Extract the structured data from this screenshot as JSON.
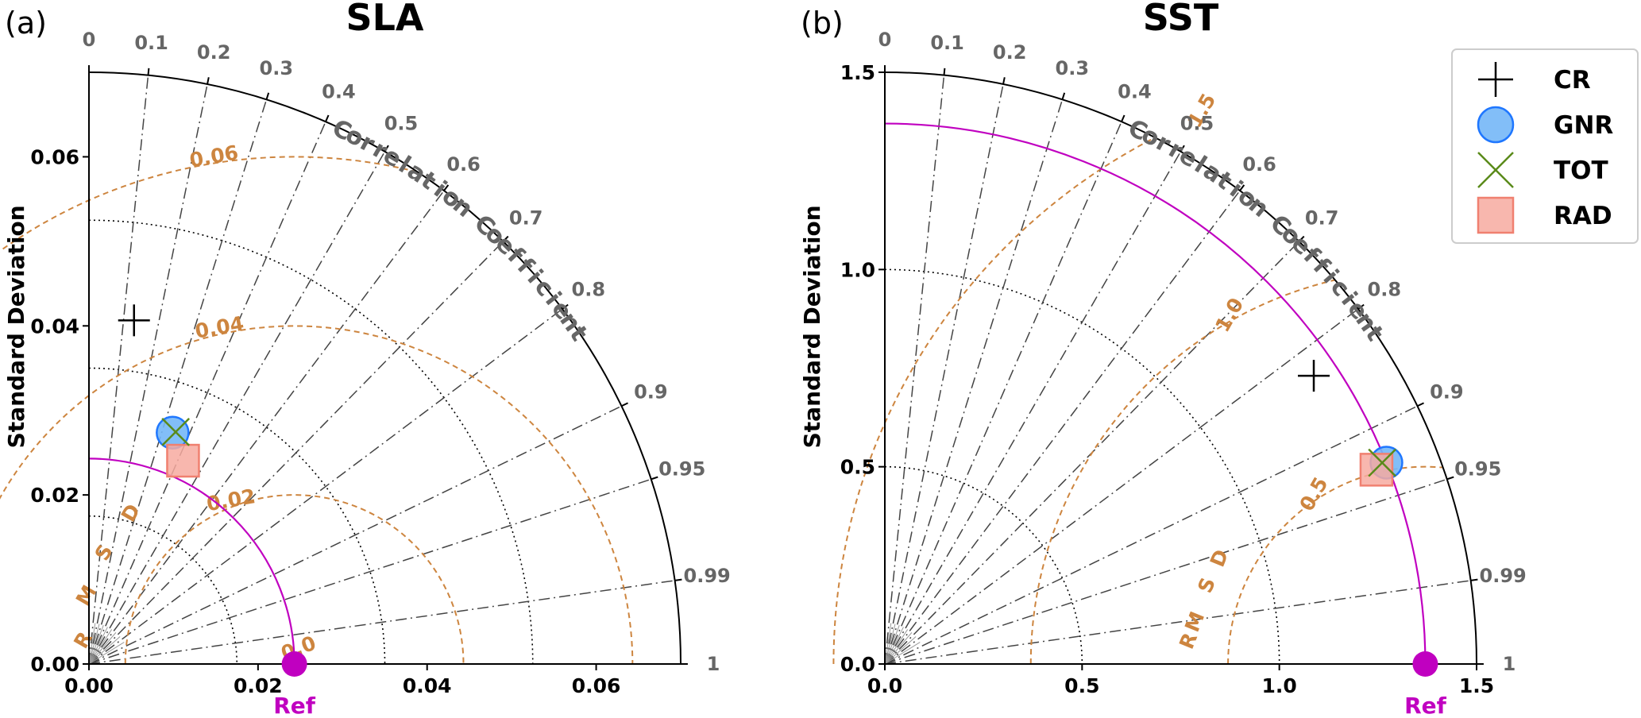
{
  "chart_data": [
    {
      "type": "taylor",
      "panel_label": "(a)",
      "title": "SLA",
      "ylabel": "Standard Deviation",
      "angle_title": "Correlation Coefficient",
      "rms_title": "RMSD",
      "ref_label": "Ref",
      "std_max": 0.07,
      "ref_std": 0.0243,
      "std_ticks": [
        "0.00",
        "0.02",
        "0.04",
        "0.06"
      ],
      "std_tick_values": [
        0,
        0.02,
        0.04,
        0.06
      ],
      "std_circles": [
        0.0175,
        0.035,
        0.0525
      ],
      "corr_ticks": [
        "0",
        "0.1",
        "0.2",
        "0.3",
        "0.4",
        "0.5",
        "0.6",
        "0.7",
        "0.8",
        "0.9",
        "0.95",
        "0.99",
        "1"
      ],
      "corr_tick_values": [
        0,
        0.1,
        0.2,
        0.3,
        0.4,
        0.5,
        0.6,
        0.7,
        0.8,
        0.9,
        0.95,
        0.99,
        1
      ],
      "rms_contours": [
        0.02,
        0.04,
        0.06
      ],
      "rms_labels": [
        "0.02",
        "0.04",
        "0.06"
      ],
      "rms_zero_label": "0.0",
      "points": [
        {
          "model": "CR",
          "std": 0.041,
          "corr": 0.13
        },
        {
          "model": "GNR",
          "std": 0.0291,
          "corr": 0.34
        },
        {
          "model": "TOT",
          "std": 0.0293,
          "corr": 0.35
        },
        {
          "model": "RAD",
          "std": 0.0265,
          "corr": 0.42
        }
      ]
    },
    {
      "type": "taylor",
      "panel_label": "(b)",
      "title": "SST",
      "ylabel": "Standard Deviation",
      "angle_title": "Correlation Coefficient",
      "rms_title": "RMSD",
      "ref_label": "Ref",
      "std_max": 1.5,
      "ref_std": 1.37,
      "std_ticks": [
        "0.0",
        "0.5",
        "1.0",
        "1.5"
      ],
      "std_tick_values": [
        0,
        0.5,
        1.0,
        1.5
      ],
      "std_circles": [
        0.5,
        1.0
      ],
      "corr_ticks": [
        "0",
        "0.1",
        "0.2",
        "0.3",
        "0.4",
        "0.5",
        "0.6",
        "0.7",
        "0.8",
        "0.9",
        "0.95",
        "0.99",
        "1"
      ],
      "corr_tick_values": [
        0,
        0.1,
        0.2,
        0.3,
        0.4,
        0.5,
        0.6,
        0.7,
        0.8,
        0.9,
        0.95,
        0.99,
        1
      ],
      "rms_contours": [
        0.5,
        1.0,
        1.5
      ],
      "rms_labels": [
        "0.5",
        "1.0",
        "1.5"
      ],
      "rms_zero_label": "",
      "points": [
        {
          "model": "CR",
          "std": 1.31,
          "corr": 0.83
        },
        {
          "model": "GNR",
          "std": 1.37,
          "corr": 0.928
        },
        {
          "model": "TOT",
          "std": 1.36,
          "corr": 0.927
        },
        {
          "model": "RAD",
          "std": 1.34,
          "corr": 0.93
        }
      ]
    }
  ],
  "legend": {
    "items": [
      {
        "label": "CR",
        "marker": "plus",
        "color": "#000000"
      },
      {
        "label": "GNR",
        "marker": "circle",
        "color": "#74b7f7",
        "edge": "#1f77ff"
      },
      {
        "label": "TOT",
        "marker": "x",
        "color": "#5a8a1a"
      },
      {
        "label": "RAD",
        "marker": "square",
        "color": "#f7aaa0",
        "edge": "#f08070"
      }
    ]
  },
  "colors": {
    "rms": "#cd853f",
    "ref": "#c000c0",
    "grid": "#444444",
    "corr_label": "#666666"
  }
}
